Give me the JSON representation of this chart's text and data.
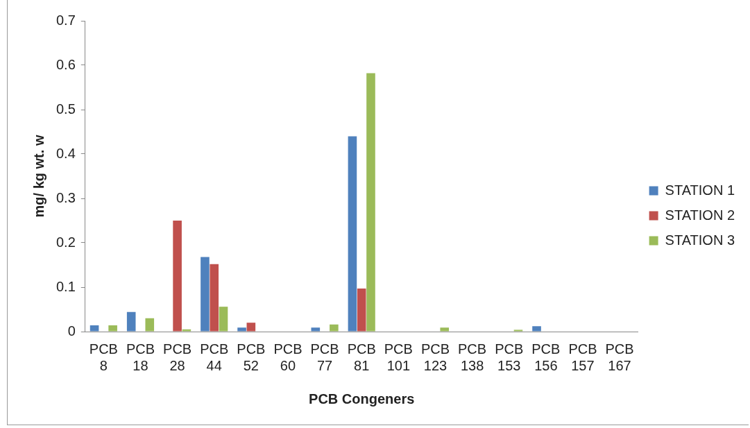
{
  "chart_data": {
    "type": "bar",
    "xlabel": "PCB Congeners",
    "ylabel": "mg/ kg wt. w",
    "categories": [
      "PCB 8",
      "PCB 18",
      "PCB 28",
      "PCB 44",
      "PCB 52",
      "PCB 60",
      "PCB 77",
      "PCB 81",
      "PCB 101",
      "PCB 123",
      "PCB 138",
      "PCB 153",
      "PCB 156",
      "PCB 157",
      "PCB 167"
    ],
    "series": [
      {
        "name": "STATION 1",
        "color": "#4f81bd",
        "values": [
          0.014,
          0.044,
          0,
          0.168,
          0.009,
          0,
          0.009,
          0.44,
          0,
          0,
          0,
          0,
          0.012,
          0,
          0
        ]
      },
      {
        "name": "STATION 2",
        "color": "#c0504d",
        "values": [
          0,
          0,
          0.25,
          0.152,
          0.02,
          0,
          0,
          0.097,
          0,
          0,
          0,
          0,
          0,
          0,
          0
        ]
      },
      {
        "name": "STATION 3",
        "color": "#9bbb59",
        "values": [
          0.014,
          0.03,
          0.005,
          0.056,
          0,
          0,
          0.016,
          0.582,
          0,
          0.009,
          0,
          0.004,
          0,
          0,
          0
        ]
      }
    ],
    "ylim": [
      0,
      0.7
    ],
    "yticks": [
      0,
      0.1,
      0.2,
      0.3,
      0.4,
      0.5,
      0.6,
      0.7
    ],
    "grid": false,
    "legend": "right"
  }
}
